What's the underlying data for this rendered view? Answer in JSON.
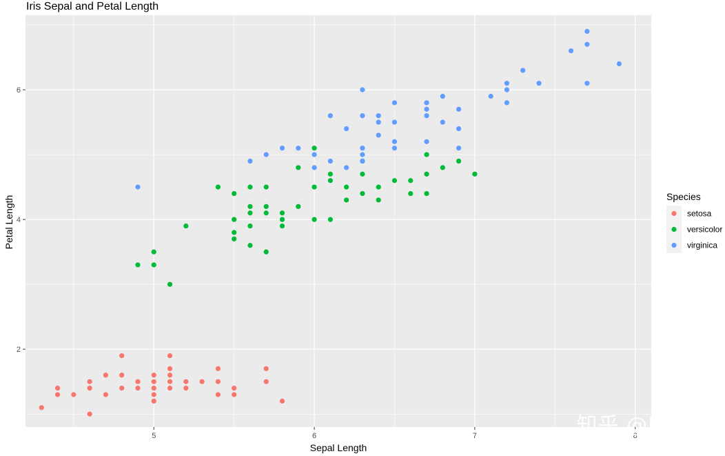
{
  "chart_data": {
    "type": "scatter",
    "title": "Iris Sepal and Petal Length",
    "xlabel": "Sepal Length",
    "ylabel": "Petal Length",
    "xlim": [
      4.2,
      8.1
    ],
    "ylim": [
      0.8,
      7.15
    ],
    "x_ticks": [
      5,
      6,
      7,
      8
    ],
    "y_ticks": [
      2,
      4,
      6
    ],
    "grid": true,
    "legend_position": "right",
    "legend_title": "Species",
    "series": [
      {
        "name": "setosa",
        "color": "#F8766D",
        "points": [
          [
            4.3,
            1.1
          ],
          [
            4.4,
            1.3
          ],
          [
            4.4,
            1.4
          ],
          [
            4.5,
            1.3
          ],
          [
            4.6,
            1.0
          ],
          [
            4.6,
            1.4
          ],
          [
            4.6,
            1.5
          ],
          [
            4.7,
            1.3
          ],
          [
            4.7,
            1.6
          ],
          [
            4.8,
            1.4
          ],
          [
            4.8,
            1.6
          ],
          [
            4.8,
            1.9
          ],
          [
            4.9,
            1.4
          ],
          [
            4.9,
            1.5
          ],
          [
            5.0,
            1.2
          ],
          [
            5.0,
            1.3
          ],
          [
            5.0,
            1.4
          ],
          [
            5.0,
            1.5
          ],
          [
            5.0,
            1.6
          ],
          [
            5.1,
            1.4
          ],
          [
            5.1,
            1.5
          ],
          [
            5.1,
            1.6
          ],
          [
            5.1,
            1.7
          ],
          [
            5.1,
            1.9
          ],
          [
            5.2,
            1.4
          ],
          [
            5.2,
            1.5
          ],
          [
            5.3,
            1.5
          ],
          [
            5.4,
            1.3
          ],
          [
            5.4,
            1.5
          ],
          [
            5.4,
            1.7
          ],
          [
            5.5,
            1.3
          ],
          [
            5.5,
            1.4
          ],
          [
            5.7,
            1.5
          ],
          [
            5.7,
            1.7
          ],
          [
            5.8,
            1.2
          ]
        ]
      },
      {
        "name": "versicolor",
        "color": "#00BA38",
        "points": [
          [
            4.9,
            3.3
          ],
          [
            5.0,
            3.3
          ],
          [
            5.0,
            3.5
          ],
          [
            5.1,
            3.0
          ],
          [
            5.2,
            3.9
          ],
          [
            5.4,
            4.5
          ],
          [
            5.5,
            3.7
          ],
          [
            5.5,
            3.8
          ],
          [
            5.5,
            4.0
          ],
          [
            5.5,
            4.4
          ],
          [
            5.6,
            3.6
          ],
          [
            5.6,
            3.9
          ],
          [
            5.6,
            4.1
          ],
          [
            5.6,
            4.2
          ],
          [
            5.6,
            4.5
          ],
          [
            5.7,
            3.5
          ],
          [
            5.7,
            4.1
          ],
          [
            5.7,
            4.2
          ],
          [
            5.7,
            4.5
          ],
          [
            5.8,
            3.9
          ],
          [
            5.8,
            4.0
          ],
          [
            5.8,
            4.1
          ],
          [
            5.9,
            4.2
          ],
          [
            5.9,
            4.8
          ],
          [
            6.0,
            4.0
          ],
          [
            6.0,
            4.5
          ],
          [
            6.0,
            5.1
          ],
          [
            6.1,
            4.0
          ],
          [
            6.1,
            4.6
          ],
          [
            6.1,
            4.7
          ],
          [
            6.2,
            4.3
          ],
          [
            6.2,
            4.5
          ],
          [
            6.3,
            4.4
          ],
          [
            6.3,
            4.7
          ],
          [
            6.3,
            4.9
          ],
          [
            6.4,
            4.3
          ],
          [
            6.4,
            4.5
          ],
          [
            6.5,
            4.6
          ],
          [
            6.6,
            4.4
          ],
          [
            6.6,
            4.6
          ],
          [
            6.7,
            4.4
          ],
          [
            6.7,
            4.7
          ],
          [
            6.7,
            5.0
          ],
          [
            6.8,
            4.8
          ],
          [
            6.9,
            4.9
          ],
          [
            7.0,
            4.7
          ]
        ]
      },
      {
        "name": "virginica",
        "color": "#619CFF",
        "points": [
          [
            4.9,
            4.5
          ],
          [
            5.6,
            4.9
          ],
          [
            5.7,
            5.0
          ],
          [
            5.8,
            5.1
          ],
          [
            5.9,
            5.1
          ],
          [
            6.0,
            4.8
          ],
          [
            6.0,
            5.0
          ],
          [
            6.1,
            4.9
          ],
          [
            6.1,
            5.6
          ],
          [
            6.2,
            4.8
          ],
          [
            6.2,
            5.4
          ],
          [
            6.3,
            4.9
          ],
          [
            6.3,
            5.0
          ],
          [
            6.3,
            5.1
          ],
          [
            6.3,
            5.6
          ],
          [
            6.3,
            6.0
          ],
          [
            6.4,
            5.3
          ],
          [
            6.4,
            5.5
          ],
          [
            6.4,
            5.6
          ],
          [
            6.5,
            5.1
          ],
          [
            6.5,
            5.2
          ],
          [
            6.5,
            5.5
          ],
          [
            6.5,
            5.8
          ],
          [
            6.7,
            5.2
          ],
          [
            6.7,
            5.6
          ],
          [
            6.7,
            5.7
          ],
          [
            6.7,
            5.8
          ],
          [
            6.8,
            5.5
          ],
          [
            6.8,
            5.9
          ],
          [
            6.9,
            5.1
          ],
          [
            6.9,
            5.4
          ],
          [
            6.9,
            5.7
          ],
          [
            7.1,
            5.9
          ],
          [
            7.2,
            5.8
          ],
          [
            7.2,
            6.0
          ],
          [
            7.2,
            6.1
          ],
          [
            7.3,
            6.3
          ],
          [
            7.4,
            6.1
          ],
          [
            7.6,
            6.6
          ],
          [
            7.7,
            6.1
          ],
          [
            7.7,
            6.7
          ],
          [
            7.7,
            6.9
          ],
          [
            7.9,
            6.4
          ]
        ]
      }
    ]
  },
  "watermark": "知乎 @R友舍"
}
